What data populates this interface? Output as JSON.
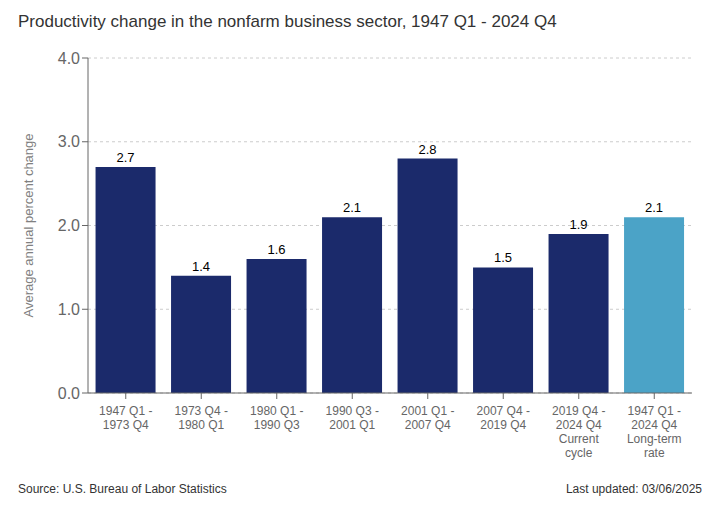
{
  "chart_data": {
    "type": "bar",
    "title": "Productivity change in the nonfarm business sector, 1947 Q1 - 2024 Q4",
    "y_label": "Average annual percent change",
    "categories": [
      "1947 Q1 -\n1973 Q4",
      "1973 Q4 -\n1980 Q1",
      "1980 Q1 -\n1990 Q3",
      "1990 Q3 -\n2001 Q1",
      "2001 Q1 -\n2007 Q4",
      "2007 Q4 -\n2019 Q4",
      "2019 Q4 -\n2024 Q4\nCurrent\ncycle",
      "1947 Q1 -\n2024 Q4\nLong-term\nrate"
    ],
    "values": [
      2.7,
      1.4,
      1.6,
      2.1,
      2.8,
      1.5,
      1.9,
      2.1
    ],
    "colors": [
      "#1B2A6B",
      "#1B2A6B",
      "#1B2A6B",
      "#1B2A6B",
      "#1B2A6B",
      "#1B2A6B",
      "#1B2A6B",
      "#4BA3C7"
    ],
    "ylim": [
      0.0,
      4.0
    ],
    "yticks": [
      {
        "value": 0.0,
        "label": "0.0"
      },
      {
        "value": 1.0,
        "label": "1.0"
      },
      {
        "value": 2.0,
        "label": "2.0"
      },
      {
        "value": 3.0,
        "label": "3.0"
      },
      {
        "value": 4.0,
        "label": "4.0"
      }
    ],
    "grid": true,
    "data_labels": true,
    "annotations": [
      "Source: U.S. Bureau of Labor Statistics",
      "Last updated: 03/06/2025"
    ]
  }
}
